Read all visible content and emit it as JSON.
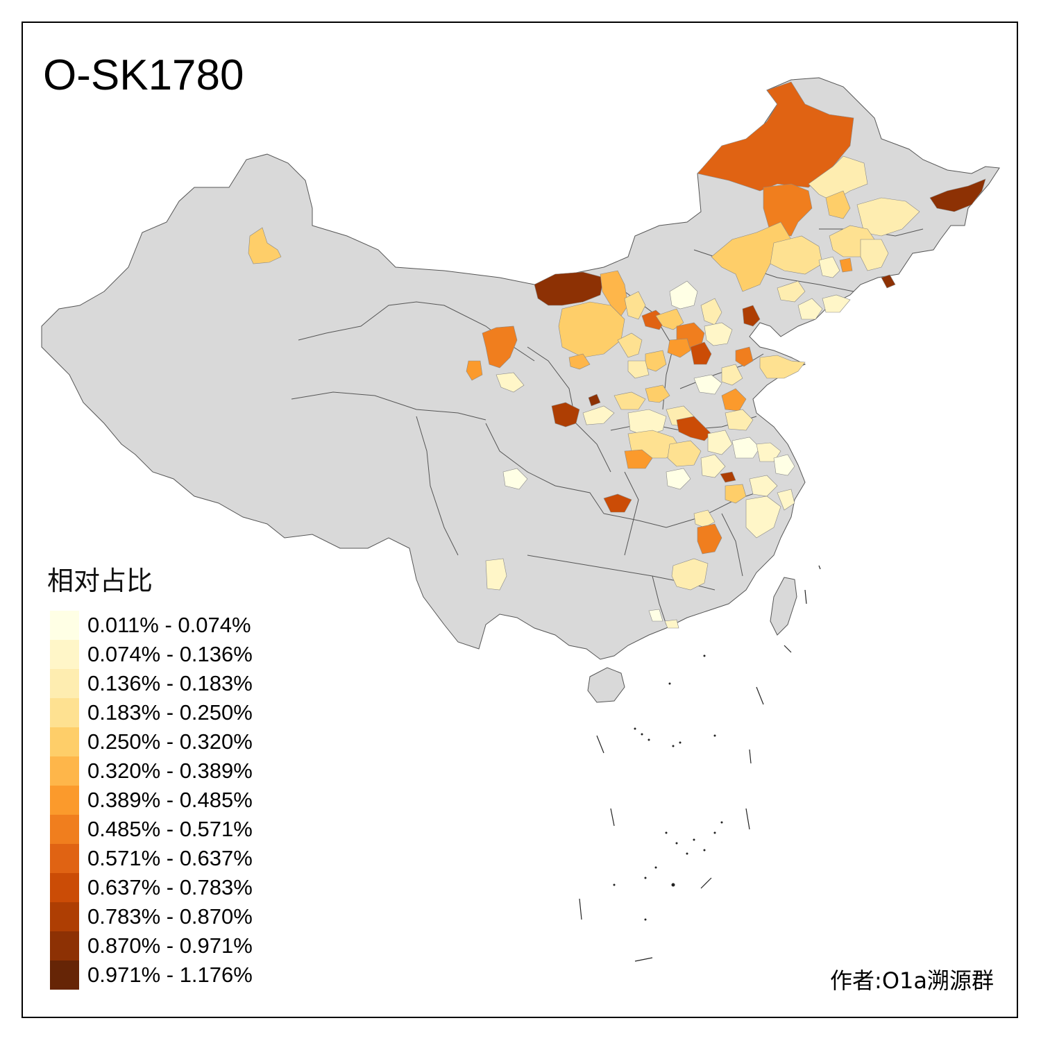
{
  "title": "O-SK1780",
  "legend": {
    "title": "相对占比",
    "bins": [
      {
        "label": "0.011% - 0.074%",
        "color": "#FFFFE5"
      },
      {
        "label": "0.074% - 0.136%",
        "color": "#FFF6C8"
      },
      {
        "label": "0.136% - 0.183%",
        "color": "#FEEDB0"
      },
      {
        "label": "0.183% - 0.250%",
        "color": "#FEE191"
      },
      {
        "label": "0.250% - 0.320%",
        "color": "#FECE69"
      },
      {
        "label": "0.320% - 0.389%",
        "color": "#FEB64A"
      },
      {
        "label": "0.389% - 0.485%",
        "color": "#FB9A2C"
      },
      {
        "label": "0.485% - 0.571%",
        "color": "#F07E1E"
      },
      {
        "label": "0.571% - 0.637%",
        "color": "#E06313"
      },
      {
        "label": "0.637% - 0.783%",
        "color": "#CB4C06"
      },
      {
        "label": "0.783% - 0.870%",
        "color": "#AE3E03"
      },
      {
        "label": "0.870% - 0.971%",
        "color": "#8D3104"
      },
      {
        "label": "0.971% - 1.176%",
        "color": "#662506"
      }
    ]
  },
  "map": {
    "background_color": "#D9D9D9",
    "border_color": "#666666",
    "no_data_color": "#D9D9D9"
  },
  "credit": "作者:O1a溯源群"
}
